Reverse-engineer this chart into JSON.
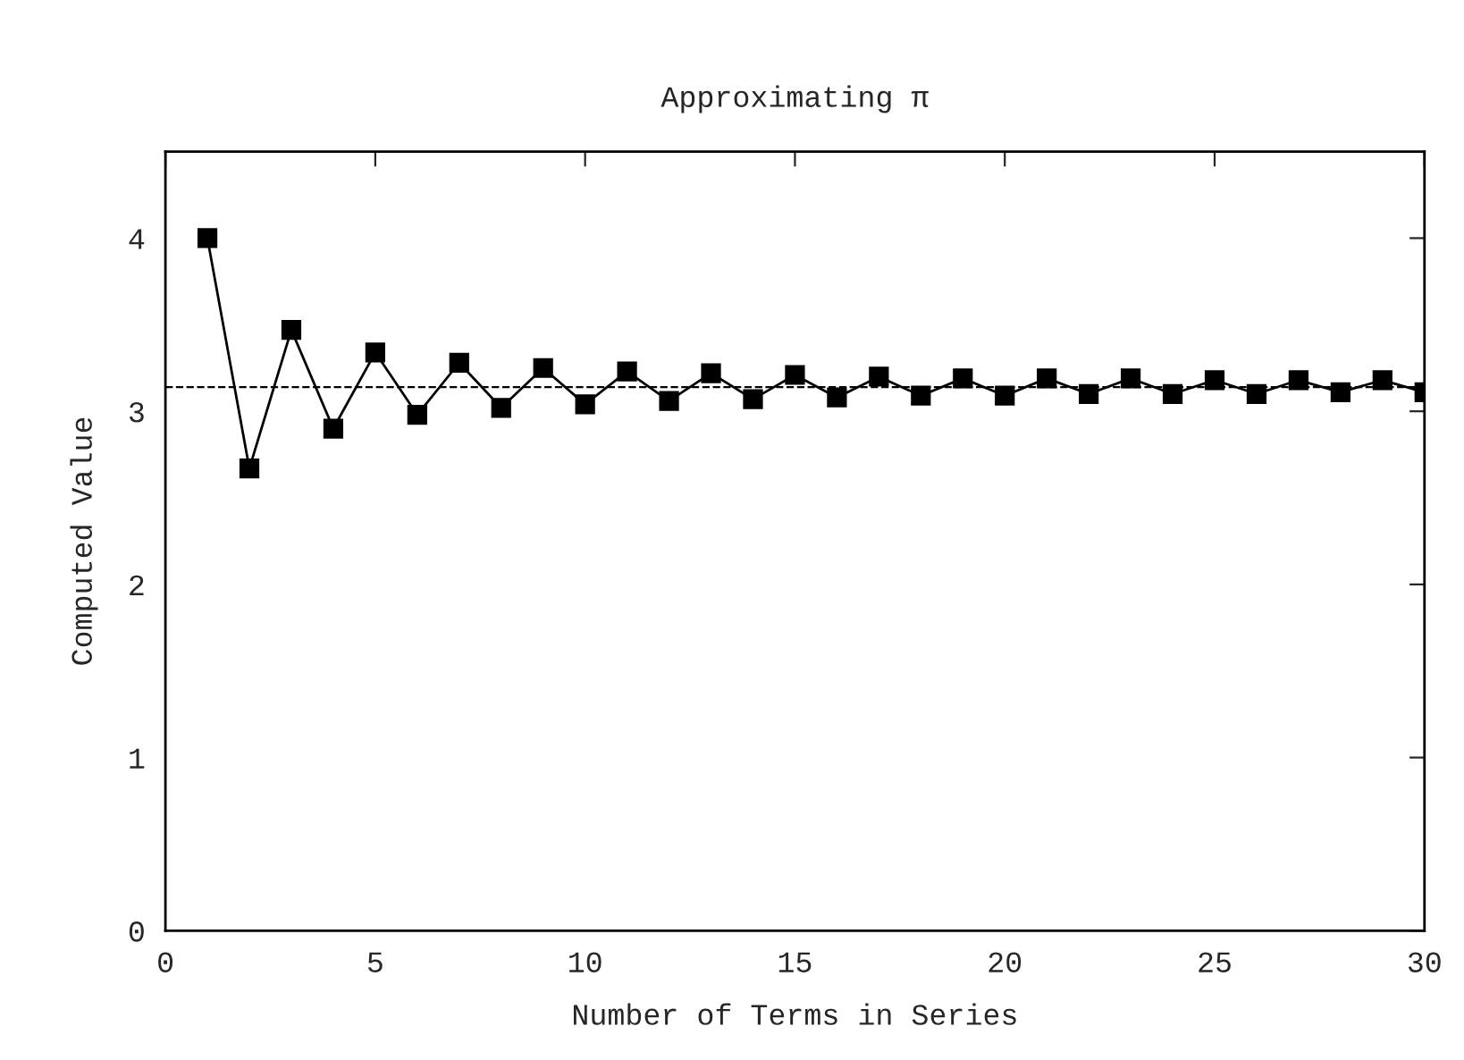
{
  "chart_data": {
    "type": "line",
    "title": "Approximating π",
    "xlabel": "Number of Terms in Series",
    "ylabel": "Computed Value",
    "x": [
      1,
      2,
      3,
      4,
      5,
      6,
      7,
      8,
      9,
      10,
      11,
      12,
      13,
      14,
      15,
      16,
      17,
      18,
      19,
      20,
      21,
      22,
      23,
      24,
      25,
      26,
      27,
      28,
      29,
      30
    ],
    "series": [
      {
        "color": "#000000",
        "values": [
          4.0,
          2.67,
          3.47,
          2.9,
          3.34,
          2.98,
          3.28,
          3.02,
          3.25,
          3.04,
          3.23,
          3.06,
          3.22,
          3.07,
          3.21,
          3.08,
          3.2,
          3.09,
          3.19,
          3.09,
          3.19,
          3.1,
          3.19,
          3.1,
          3.18,
          3.1,
          3.18,
          3.11,
          3.18,
          3.11
        ]
      }
    ],
    "xlim": [
      0,
      30
    ],
    "xticks": [
      0,
      5,
      10,
      15,
      20,
      25,
      30
    ],
    "ylim": [
      0,
      4.5
    ],
    "yticks": [
      0,
      1,
      2,
      3,
      4
    ],
    "ref_lines": [
      {
        "axis": "y",
        "value": 3.14,
        "color": "#000000",
        "line_style": "dashed"
      }
    ],
    "marker": "square",
    "line_style": "solid",
    "grid": false,
    "legend": false
  }
}
